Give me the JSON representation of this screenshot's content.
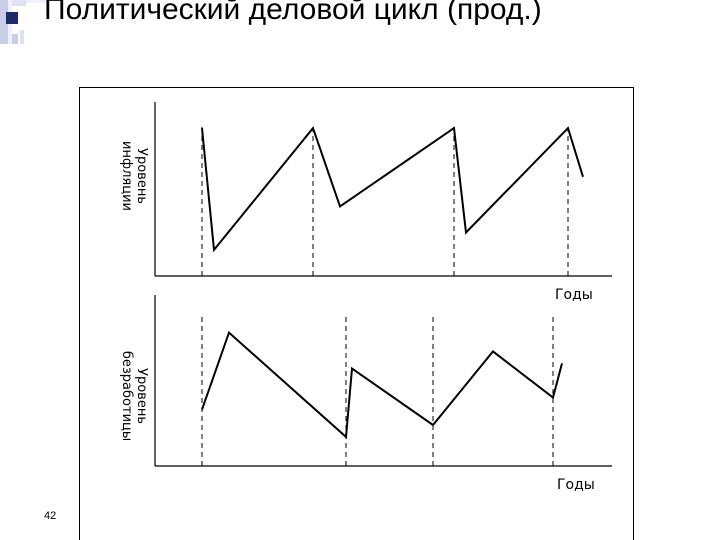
{
  "slide": {
    "title": "Политический деловой цикл (прод.)",
    "page_number": "42"
  },
  "chart_data": [
    {
      "type": "line",
      "ylabel_line1": "Уровень",
      "ylabel_line2": "инфляции",
      "xlabel": "Годы",
      "grid": false,
      "series": [
        {
          "points": [
            [
              0.0,
              0.85
            ],
            [
              0.04,
              0.15
            ],
            [
              0.37,
              0.85
            ],
            [
              0.46,
              0.4
            ],
            [
              0.84,
              0.85
            ],
            [
              0.88,
              0.25
            ],
            [
              1.22,
              0.85
            ],
            [
              1.27,
              0.57
            ]
          ]
        }
      ],
      "cycle_markers": [
        0.0,
        0.37,
        0.84,
        1.22
      ]
    },
    {
      "type": "line",
      "ylabel_line1": "Уровень",
      "ylabel_line2": "безработицы",
      "xlabel": "Годы",
      "grid": false,
      "series": [
        {
          "points": [
            [
              0.0,
              0.33
            ],
            [
              0.09,
              0.78
            ],
            [
              0.48,
              0.17
            ],
            [
              0.5,
              0.57
            ],
            [
              0.77,
              0.24
            ],
            [
              0.97,
              0.67
            ],
            [
              1.17,
              0.4
            ],
            [
              1.2,
              0.6
            ]
          ]
        }
      ],
      "cycle_markers": [
        0.0,
        0.48,
        0.77,
        1.17
      ]
    }
  ],
  "colors": {
    "line": "#000000",
    "axis": "#000000",
    "marker": "#000000",
    "bullet": "#1f2a6b"
  }
}
